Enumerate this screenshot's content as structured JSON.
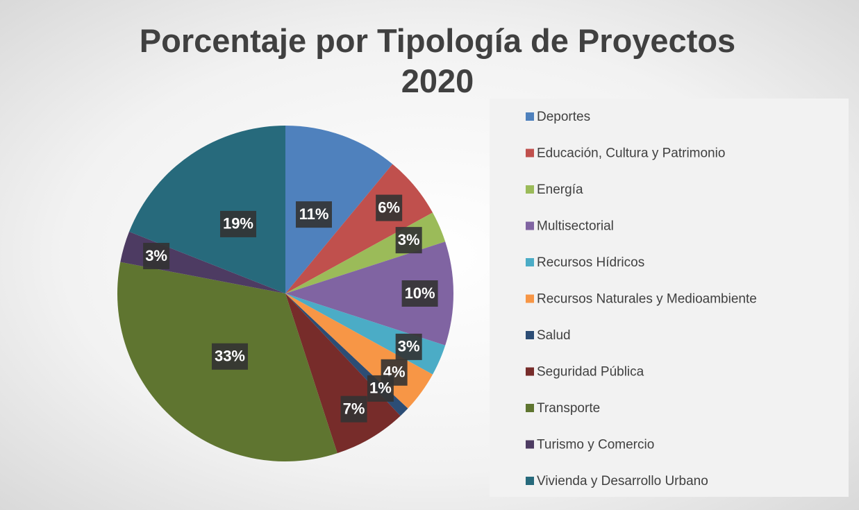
{
  "chart_data": {
    "type": "pie",
    "title": "Porcentaje por Tipología de Proyectos 2020",
    "categories": [
      "Deportes",
      "Educación, Cultura y Patrimonio",
      "Energía",
      "Multisectorial",
      "Recursos Hídricos",
      "Recursos Naturales y Medioambiente",
      "Salud",
      "Seguridad Pública",
      "Transporte",
      "Turismo y Comercio",
      "Vivienda y Desarrollo Urbano"
    ],
    "values": [
      11,
      6,
      3,
      10,
      3,
      4,
      1,
      7,
      33,
      3,
      19
    ],
    "value_labels": [
      "11%",
      "6%",
      "3%",
      "10%",
      "3%",
      "4%",
      "1%",
      "7%",
      "33%",
      "3%",
      "19%"
    ],
    "colors": [
      "#4f81bd",
      "#c0504d",
      "#9bbb59",
      "#8064a2",
      "#4bacc6",
      "#f79646",
      "#2c4d75",
      "#772c2a",
      "#5f7530",
      "#4d3b62",
      "#276a7c"
    ],
    "legend": "right"
  }
}
